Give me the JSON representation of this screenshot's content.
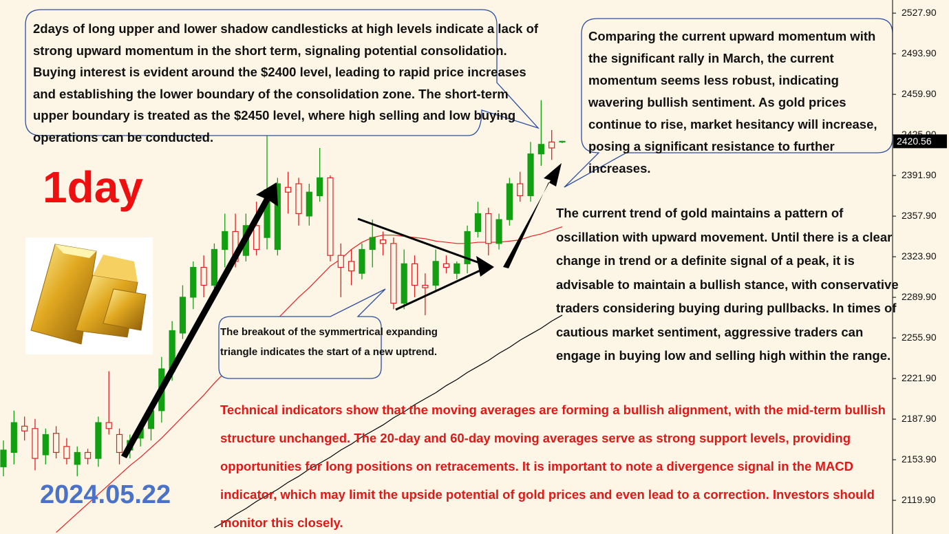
{
  "chart_data": {
    "type": "candlestick",
    "open": [
      2148,
      2160,
      2182,
      2180,
      2158,
      2176,
      2165,
      2150,
      2160,
      2155,
      2185,
      2175,
      2162,
      2172,
      2180,
      2195,
      2228,
      2260,
      2290,
      2315,
      2300,
      2330,
      2345,
      2325,
      2350,
      2340,
      2330,
      2382,
      2385,
      2358,
      2375,
      2390,
      2325,
      2320,
      2310,
      2330,
      2338,
      2335,
      2285,
      2318,
      2300,
      2300,
      2318,
      2310,
      2318,
      2345,
      2360,
      2335,
      2355,
      2385,
      2375,
      2410,
      2420,
      2420.56
    ],
    "high": [
      2170,
      2195,
      2190,
      2188,
      2180,
      2182,
      2172,
      2165,
      2163,
      2190,
      2228,
      2180,
      2175,
      2185,
      2200,
      2240,
      2270,
      2300,
      2320,
      2325,
      2335,
      2360,
      2360,
      2360,
      2370,
      2440,
      2390,
      2395,
      2390,
      2385,
      2415,
      2392,
      2335,
      2330,
      2335,
      2355,
      2345,
      2340,
      2330,
      2325,
      2310,
      2330,
      2325,
      2320,
      2350,
      2370,
      2365,
      2360,
      2390,
      2395,
      2420,
      2455,
      2430,
      2421
    ],
    "low": [
      2140,
      2150,
      2170,
      2145,
      2150,
      2155,
      2150,
      2140,
      2150,
      2148,
      2175,
      2150,
      2155,
      2165,
      2170,
      2185,
      2220,
      2255,
      2280,
      2290,
      2290,
      2315,
      2315,
      2320,
      2325,
      2330,
      2325,
      2360,
      2350,
      2350,
      2370,
      2320,
      2290,
      2300,
      2305,
      2315,
      2325,
      2280,
      2280,
      2290,
      2275,
      2295,
      2310,
      2305,
      2310,
      2340,
      2325,
      2330,
      2350,
      2370,
      2370,
      2400,
      2405,
      2419
    ],
    "close": [
      2162,
      2185,
      2178,
      2155,
      2175,
      2160,
      2155,
      2160,
      2155,
      2185,
      2180,
      2160,
      2170,
      2180,
      2195,
      2230,
      2262,
      2290,
      2315,
      2300,
      2330,
      2345,
      2320,
      2350,
      2330,
      2380,
      2385,
      2378,
      2360,
      2378,
      2390,
      2325,
      2315,
      2312,
      2330,
      2340,
      2335,
      2285,
      2318,
      2300,
      2298,
      2320,
      2315,
      2318,
      2345,
      2360,
      2335,
      2355,
      2385,
      2375,
      2410,
      2418,
      2415,
      2420.56
    ],
    "up_color": "#12a012",
    "down_color": "#e02020",
    "moving_averages": [
      {
        "color": "#e82020",
        "values": [
          null,
          null,
          null,
          null,
          null,
          2093,
          2101,
          2109,
          2117,
          2125,
          2133,
          2141,
          2149,
          2156,
          2164,
          2172,
          2181,
          2190,
          2199,
          2208,
          2218,
          2227,
          2236,
          2245,
          2254,
          2263,
          2272,
          2281,
          2290,
          2298,
          2307,
          2316,
          2322,
          2330,
          2336,
          2340,
          2342,
          2342,
          2341,
          2340,
          2339,
          2337,
          2336,
          2335,
          2335,
          2336,
          2336,
          2336,
          2337,
          2338,
          2341,
          2343,
          2346,
          2349
        ]
      },
      {
        "color": "#000000",
        "values": [
          null,
          null,
          null,
          null,
          null,
          null,
          null,
          null,
          null,
          null,
          null,
          null,
          null,
          null,
          null,
          null,
          null,
          null,
          null,
          null,
          2097,
          2102,
          2108,
          2113,
          2119,
          2124,
          2129,
          2135,
          2140,
          2146,
          2151,
          2156,
          2162,
          2167,
          2173,
          2178,
          2183,
          2189,
          2194,
          2200,
          2205,
          2210,
          2216,
          2221,
          2227,
          2232,
          2237,
          2243,
          2248,
          2254,
          2259,
          2264,
          2270,
          2275
        ]
      }
    ],
    "ylim": [
      2091.7,
      2538.9
    ],
    "yticks": [
      {
        "value": 2527.9,
        "label": "2527.90"
      },
      {
        "value": 2493.9,
        "label": "2493.90"
      },
      {
        "value": 2459.9,
        "label": "2459.90"
      },
      {
        "value": 2425.9,
        "label": "2425.90"
      },
      {
        "value": 2391.9,
        "label": "2391.90"
      },
      {
        "value": 2357.9,
        "label": "2357.90"
      },
      {
        "value": 2323.9,
        "label": "2323.90"
      },
      {
        "value": 2289.9,
        "label": "2289.90"
      },
      {
        "value": 2255.9,
        "label": "2255.90"
      },
      {
        "value": 2221.9,
        "label": "2221.90"
      },
      {
        "value": 2187.9,
        "label": "2187.90"
      },
      {
        "value": 2153.9,
        "label": "2153.90"
      },
      {
        "value": 2119.9,
        "label": "2119.90"
      }
    ],
    "last_price": 2420.56,
    "period": "1day",
    "date": "2024.05.22",
    "annotations": [
      "2days of long upper and lower shadow candlesticks at high levels indicate a lack of strong upward momentum in the short term, signaling potential consolidation. Buying interest is evident around the $2400 level, leading to rapid price increases and establishing the lower boundary of the consolidation zone. The short-term upper boundary is treated as the $2450 level, where high selling and low buying operations can be conducted.",
      "Comparing the current upward momentum with the significant rally in March, the current momentum seems less robust, indicating wavering bullish sentiment. As gold prices continue to rise, market hesitancy will increase, posing a significant resistance to further increases.",
      "The breakout of the symmertrical expanding triangle indicates the start of a new uptrend.",
      "The current trend of gold maintains a pattern of oscillation with upward movement. Until there is a clear change in trend or a definite signal of a peak, it is advisable to maintain a bullish stance, with conservative traders considering buying during pullbacks. In times of cautious market sentiment, aggressive traders can engage in buying low and selling high within the range.",
      "Technical indicators show that the moving averages are forming a bullish alignment, with the mid-term bullish structure unchanged. The 20-day and 60-day moving averages serve as strong support levels, providing opportunities for long positions on retracements. It is important to note a divergence signal in the MACD indicator, which may limit the upside potential of gold prices and even lead to a correction. Investors should monitor this closely."
    ]
  }
}
